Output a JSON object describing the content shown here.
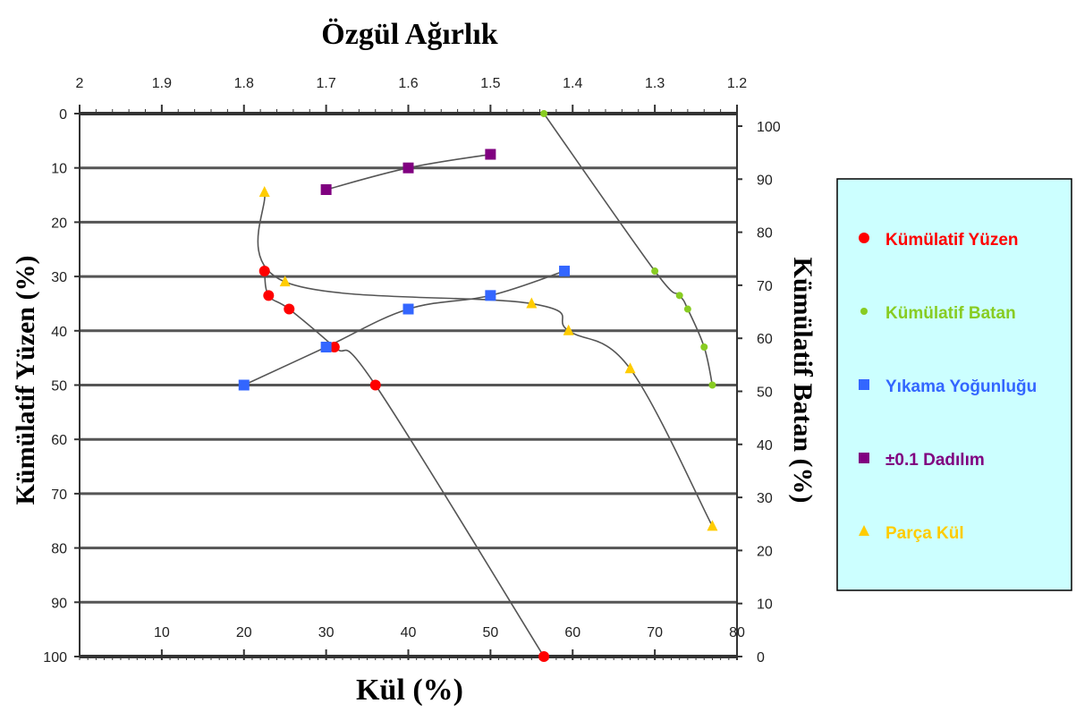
{
  "chart_data": {
    "type": "line",
    "title_top": "Özgül Ağırlık",
    "xlabel": "Kül (%)",
    "ylabel_left": "Kümülatif Yüzen (%)",
    "ylabel_right": "Kümülatif Batan (%)",
    "x_top": {
      "min": 2,
      "max": 1.2,
      "ticks": [
        "2",
        "1.9",
        "1.8",
        "1.7",
        "1.6",
        "1.5",
        "1.4",
        "1.3",
        "1.2"
      ]
    },
    "x_bottom": {
      "min": 0,
      "max": 80,
      "ticks": [
        "10",
        "20",
        "30",
        "40",
        "50",
        "60",
        "70",
        "80"
      ]
    },
    "y_left": {
      "min": 0,
      "max": 100,
      "ticks": [
        "0",
        "10",
        "20",
        "30",
        "40",
        "50",
        "60",
        "70",
        "80",
        "90",
        "100"
      ]
    },
    "y_right": {
      "min": 0,
      "max": 100,
      "ticks": [
        "100",
        "90",
        "80",
        "70",
        "60",
        "50",
        "40",
        "30",
        "20",
        "10",
        "0"
      ]
    },
    "grid": true,
    "legend_position": "right",
    "series": [
      {
        "name": "Kümülatif Yüzen",
        "color": "#ff0000",
        "marker": "circle",
        "x_axis": "bottom",
        "points": [
          [
            22.5,
            29
          ],
          [
            23,
            33.5
          ],
          [
            25.5,
            36
          ],
          [
            31,
            43
          ],
          [
            36,
            50
          ],
          [
            56.5,
            100
          ]
        ]
      },
      {
        "name": "Kümülatif Batan",
        "color": "#88cc22",
        "marker": "dot",
        "x_axis": "bottom",
        "points": [
          [
            56.5,
            0
          ],
          [
            70,
            29
          ],
          [
            73,
            33.5
          ],
          [
            74,
            36
          ],
          [
            76,
            43
          ],
          [
            77,
            50
          ]
        ]
      },
      {
        "name": "Yıkama Yoğunluğu",
        "color": "#3366ff",
        "marker": "square",
        "x_axis": "top",
        "points": [
          [
            1.8,
            50
          ],
          [
            1.7,
            43
          ],
          [
            1.6,
            36
          ],
          [
            1.5,
            33.5
          ],
          [
            1.41,
            29
          ]
        ]
      },
      {
        "name": "±0.1 Dağılım",
        "color": "#800080",
        "marker": "square",
        "x_axis": "top",
        "points": [
          [
            1.7,
            14
          ],
          [
            1.6,
            10
          ],
          [
            1.5,
            7.5
          ]
        ]
      },
      {
        "name": "Parça Kül",
        "color": "#ffcc00",
        "marker": "triangle",
        "x_axis": "bottom",
        "points": [
          [
            22.5,
            14.5
          ],
          [
            25,
            31
          ],
          [
            55,
            35
          ],
          [
            59.5,
            40
          ],
          [
            67,
            47
          ],
          [
            77,
            76
          ]
        ]
      }
    ],
    "legend": [
      {
        "label": "Kümülatif Yüzen",
        "color": "#ff0000",
        "marker": "circle"
      },
      {
        "label": "Kümülatif Batan",
        "color": "#88cc22",
        "marker": "dot"
      },
      {
        "label": "Yıkama Yoğunluğu",
        "color": "#3366ff",
        "marker": "square"
      },
      {
        "label": "±0.1 Dadılım",
        "color": "#800080",
        "marker": "square"
      },
      {
        "label": "Parça Kül",
        "color": "#ffcc00",
        "marker": "triangle"
      }
    ],
    "legend_background": "#ccffff"
  }
}
